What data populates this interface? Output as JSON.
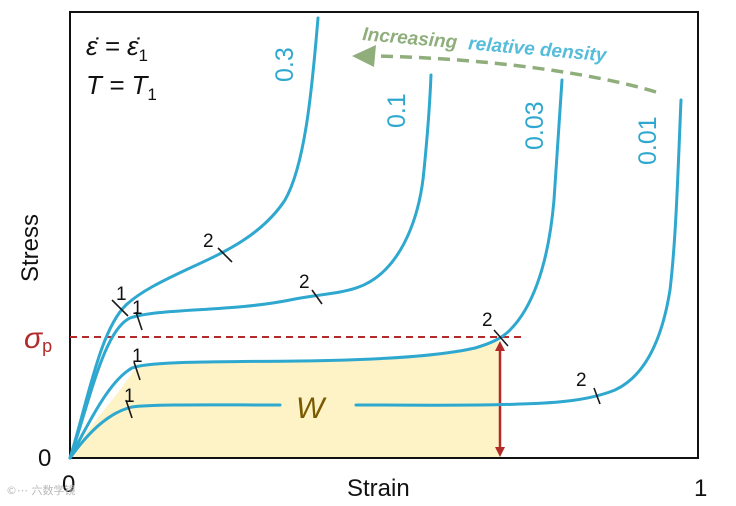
{
  "conditions": {
    "strain_rate": "ε̇ = ε̇",
    "strain_rate_sub": "1",
    "temperature": "T = T",
    "temperature_sub": "1"
  },
  "axes": {
    "x_label": "Strain",
    "y_label": "Stress",
    "origin_x_label": "0",
    "origin_y_label": "0",
    "x_end_label": "1"
  },
  "curves": [
    {
      "density": "0.3",
      "marker_1": "1",
      "marker_2": "2"
    },
    {
      "density": "0.1",
      "marker_1": "1",
      "marker_2": "2"
    },
    {
      "density": "0.03",
      "marker_1": "1",
      "marker_2": "2"
    },
    {
      "density": "0.01",
      "marker_1": "1",
      "marker_2": "2"
    }
  ],
  "arrow": {
    "part1": "Increasing",
    "part2": "relative density"
  },
  "plateau": {
    "sigma": "σ",
    "sigma_sub": "p",
    "energy_label": "W"
  },
  "watermark": "©⋯ 六数学镜",
  "colors": {
    "curve": "#2fa8cf",
    "sigma": "#b22a2a",
    "arrow": "#8fae7c",
    "area": "#fdf3c6",
    "energy_label": "#7a5a00"
  }
}
